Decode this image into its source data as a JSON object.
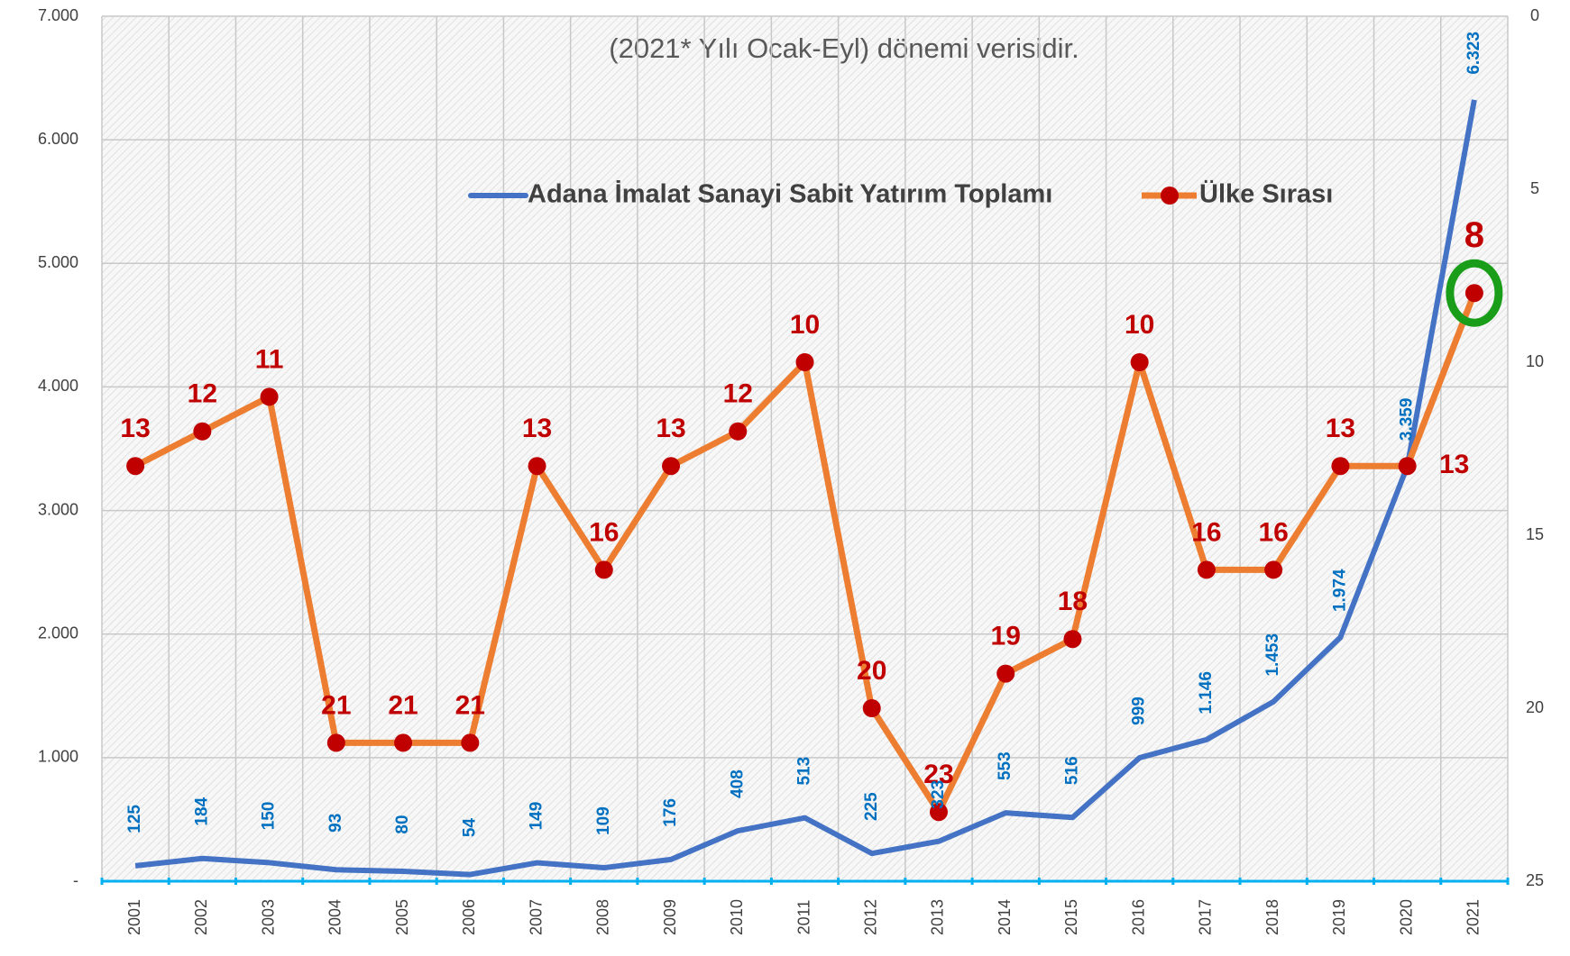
{
  "chart_data": {
    "type": "line",
    "annotation": "(2021* Yılı Ocak-Eyl) dönemi verisidir.",
    "categories": [
      "2001",
      "2002",
      "2003",
      "2004",
      "2005",
      "2006",
      "2007",
      "2008",
      "2009",
      "2010",
      "2011",
      "2012",
      "2013",
      "2014",
      "2015",
      "2016",
      "2017",
      "2018",
      "2019",
      "2020",
      "2021"
    ],
    "series": [
      {
        "name": "Adana İmalat Sanayi Sabit Yatırım Toplamı",
        "color": "#4472c4",
        "label_color": "#0070c0",
        "values": [
          125,
          184,
          150,
          93,
          80,
          54,
          149,
          109,
          176,
          408,
          513,
          225,
          323,
          553,
          516,
          999,
          1146,
          1453,
          1974,
          3359,
          6323
        ],
        "value_labels": [
          "125",
          "184",
          "150",
          "93",
          "80",
          "54",
          "149",
          "109",
          "176",
          "408",
          "513",
          "225",
          "323",
          "553",
          "516",
          "999",
          "1.146",
          "1.453",
          "1.974",
          "3.359",
          "6.323"
        ]
      },
      {
        "name": "Ülke Sırası",
        "color": "#ed7d31",
        "marker_color": "#c00000",
        "label_color": "#c00000",
        "axis": "y2",
        "values": [
          13,
          12,
          11,
          21,
          21,
          21,
          13,
          16,
          13,
          12,
          10,
          20,
          23,
          19,
          18,
          10,
          16,
          16,
          13,
          13,
          8
        ]
      }
    ],
    "ylim": [
      0,
      7000
    ],
    "yticks": [
      {
        "value": 0,
        "label": "-"
      },
      {
        "value": 1000,
        "label": "1.000"
      },
      {
        "value": 2000,
        "label": "2.000"
      },
      {
        "value": 3000,
        "label": "3.000"
      },
      {
        "value": 4000,
        "label": "4.000"
      },
      {
        "value": 5000,
        "label": "5.000"
      },
      {
        "value": 6000,
        "label": "6.000"
      },
      {
        "value": 7000,
        "label": "7.000"
      }
    ],
    "y2lim": [
      25,
      0
    ],
    "y2ticks": [
      0,
      5,
      10,
      15,
      20,
      25
    ],
    "grid": true
  }
}
